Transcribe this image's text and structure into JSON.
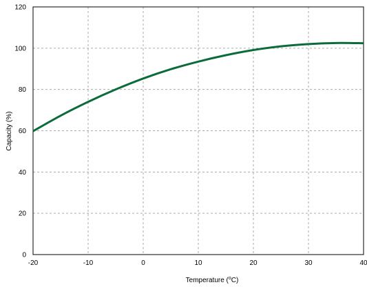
{
  "chart_data": {
    "type": "line",
    "title": "",
    "xlabel": "Temperature (",
    "xlabel_sup": "o",
    "xlabel_end": "C)",
    "ylabel": "Capacity (%)",
    "xlim": [
      -20,
      40
    ],
    "ylim": [
      0,
      120
    ],
    "xticks": [
      "-20",
      "-10",
      "0",
      "10",
      "20",
      "30",
      "40"
    ],
    "yticks": [
      "0",
      "20",
      "40",
      "60",
      "80",
      "100",
      "120"
    ],
    "grid": true,
    "line_color": "#0b6b3a",
    "series": [
      {
        "x": [
          -20,
          -15,
          -10,
          -5,
          0,
          5,
          10,
          15,
          20,
          25,
          30,
          35,
          40
        ],
        "y": [
          59.8,
          67.3,
          74.0,
          80.0,
          85.3,
          89.8,
          93.5,
          96.6,
          99.1,
          100.9,
          102.0,
          102.5,
          102.4
        ]
      }
    ]
  }
}
